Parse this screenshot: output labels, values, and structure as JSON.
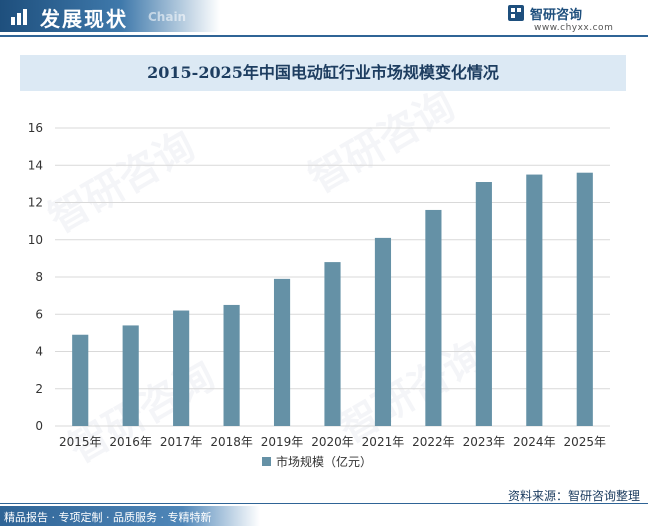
{
  "header": {
    "title": "发展现状",
    "subtitle": "Chain",
    "logo_name": "智研咨询",
    "logo_url": "www.chyxx.com"
  },
  "footer": {
    "tags": "精品报告 · 专项定制 · 品质服务 · 专精特新",
    "source": "资料来源：智研咨询整理"
  },
  "watermark_text": "智研咨询",
  "colors": {
    "bar": "#6591a6",
    "accent": "#2f6496",
    "title_band": "#dce9f4"
  },
  "chart_data": {
    "type": "bar",
    "title": "2015-2025年中国电动缸行业市场规模变化情况",
    "categories": [
      "2015年",
      "2016年",
      "2017年",
      "2018年",
      "2019年",
      "2020年",
      "2021年",
      "2022年",
      "2023年",
      "2024年",
      "2025年"
    ],
    "series": [
      {
        "name": "市场规模（亿元）",
        "values": [
          4.9,
          5.4,
          6.2,
          6.5,
          7.9,
          8.8,
          10.1,
          11.6,
          13.1,
          13.5,
          13.6
        ]
      }
    ],
    "ylim": [
      0,
      16
    ],
    "yticks": [
      0,
      2,
      4,
      6,
      8,
      10,
      12,
      14,
      16
    ],
    "grid": true,
    "legend": "bottom"
  }
}
